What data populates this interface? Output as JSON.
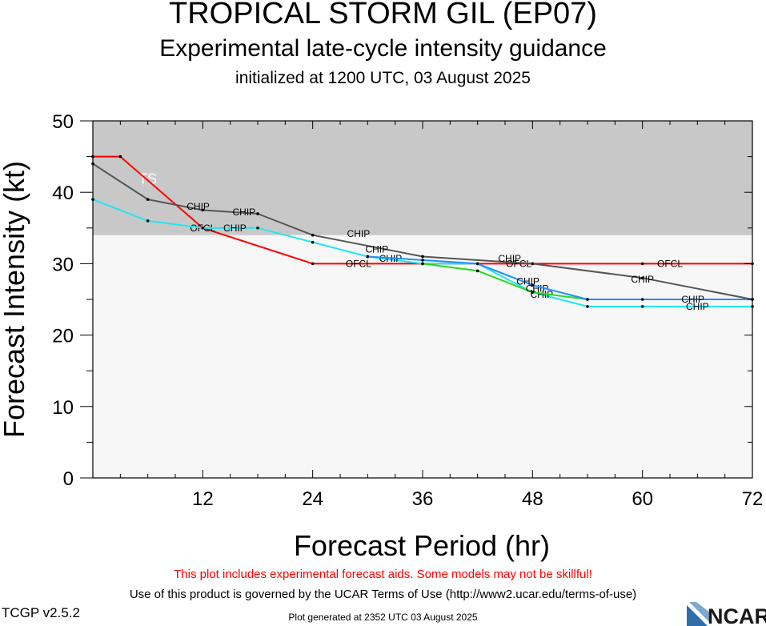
{
  "header": {
    "title": "TROPICAL STORM GIL (EP07)",
    "subtitle": "Experimental late-cycle intensity guidance",
    "initialized": "initialized at 1200 UTC, 03 August 2025"
  },
  "footer": {
    "disclaimer": "This plot includes experimental forecast aids. Some models may not be skillful!",
    "terms": "Use of this product is governed by the UCAR Terms of Use (http://www2.ucar.edu/terms-of-use)",
    "version": "TCGP v2.5.2",
    "generated": "Plot generated at 2352 UTC   03 August 2025",
    "logo_text": "NCAR"
  },
  "colors": {
    "ts_band": "#c8c8c8",
    "below_ts": "#f7f7f7",
    "ofcl": "#ff0000",
    "chip_gray": "#555555",
    "chip_cyan": "#22e6f0",
    "chip_green": "#22dd22",
    "chip_blue": "#1e90ff",
    "logo_blue": "#2f6ea8"
  },
  "chart_data": {
    "type": "line",
    "xlabel": "Forecast Period (hr)",
    "ylabel": "Forecast Intensity (kt)",
    "xlim": [
      0,
      72
    ],
    "ylim": [
      0,
      50
    ],
    "xticks": [
      12,
      24,
      36,
      48,
      60,
      72
    ],
    "yticks": [
      0,
      10,
      20,
      30,
      40,
      50
    ],
    "band": {
      "label": "TS",
      "from": 34,
      "to": 50
    },
    "series": [
      {
        "name": "OFCL",
        "color": "#ff0000",
        "x": [
          0,
          3,
          12,
          24,
          36,
          48,
          60,
          72
        ],
        "y": [
          45,
          45,
          35,
          30,
          30,
          30,
          30,
          30
        ],
        "labels": [
          {
            "x": 12,
            "y": 35
          },
          {
            "x": 29,
            "y": 30
          },
          {
            "x": 46.5,
            "y": 30
          },
          {
            "x": 63,
            "y": 30
          }
        ]
      },
      {
        "name": "CHIP",
        "color": "#555555",
        "x": [
          0,
          6,
          12,
          18,
          24,
          36,
          48,
          60,
          72
        ],
        "y": [
          44,
          39,
          37.5,
          37,
          34,
          31,
          30,
          28,
          25
        ],
        "labels": [
          {
            "x": 11.5,
            "y": 38
          },
          {
            "x": 16.5,
            "y": 37.2
          },
          {
            "x": 29,
            "y": 34.2
          },
          {
            "x": 45.5,
            "y": 30.7
          },
          {
            "x": 60,
            "y": 27.8
          }
        ]
      },
      {
        "name": "CHIP",
        "color": "#22e6f0",
        "x": [
          0,
          6,
          12,
          18,
          24,
          30,
          36,
          42,
          48,
          54,
          60,
          72
        ],
        "y": [
          39,
          36,
          35,
          35,
          33,
          31,
          30,
          30,
          26,
          24,
          24,
          24
        ],
        "labels": [
          {
            "x": 15.5,
            "y": 35
          },
          {
            "x": 32.5,
            "y": 30.7
          },
          {
            "x": 49,
            "y": 25.7
          },
          {
            "x": 66,
            "y": 24
          }
        ]
      },
      {
        "name": "CHIP",
        "color": "#22dd22",
        "x": [
          36,
          42,
          48,
          54
        ],
        "y": [
          30,
          29,
          26,
          25
        ],
        "labels": [
          {
            "x": 48.5,
            "y": 26.5
          }
        ]
      },
      {
        "name": "CHIP",
        "color": "#1e90ff",
        "x": [
          30,
          36,
          42,
          48,
          54,
          60,
          72
        ],
        "y": [
          31,
          30.5,
          30,
          27,
          25,
          25,
          25
        ],
        "labels": [
          {
            "x": 31,
            "y": 32
          },
          {
            "x": 47.5,
            "y": 27.5
          },
          {
            "x": 65.5,
            "y": 25
          }
        ]
      }
    ],
    "tick_labels_x": [
      "12",
      "24",
      "36",
      "48",
      "60",
      "72"
    ],
    "tick_labels_y": [
      "0",
      "10",
      "20",
      "30",
      "40",
      "50"
    ]
  }
}
